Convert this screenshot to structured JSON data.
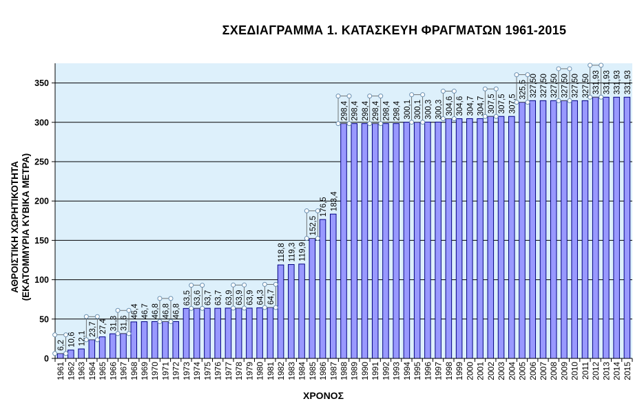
{
  "chart_data": {
    "type": "bar",
    "title": "ΣΧΕΔΙΑΓΡΑΜΜΑ 1. ΚΑΤΑΣΚΕΥΗ ΦΡΑΓΜΑΤΩΝ 1961-2015",
    "xlabel": "ΧΡΟΝΟΣ",
    "ylabel_line1": "ΑΘΡΟΙΣΤΙΚΗ ΧΩΡΗΤΙΚΟΤΗΤΑ",
    "ylabel_line2": "(ΕΚΑΤΟΜΜΥΡΙΑ ΚΥΒΙΚΑ ΜΕΤΡΑ)",
    "ylim": [
      0,
      375
    ],
    "yticks": [
      0,
      50,
      100,
      150,
      200,
      250,
      300,
      350
    ],
    "grid": true,
    "plot_background": "#DDF0FB",
    "bar_color": "#9999FF",
    "bar_stroke": "#000080",
    "categories": [
      "1961",
      "1962",
      "1963",
      "1964",
      "1965",
      "1966",
      "1967",
      "1968",
      "1969",
      "1970",
      "1971",
      "1972",
      "1973",
      "1974",
      "1975",
      "1976",
      "1977",
      "1978",
      "1979",
      "1980",
      "1981",
      "1982",
      "1983",
      "1984",
      "1985",
      "1986",
      "1987",
      "1988",
      "1989",
      "1990",
      "1991",
      "1992",
      "1993",
      "1994",
      "1995",
      "1996",
      "1997",
      "1998",
      "1999",
      "2000",
      "2001",
      "2002",
      "2003",
      "2004",
      "2005",
      "2006",
      "2007",
      "2008",
      "2009",
      "2010",
      "2011",
      "2012",
      "2013",
      "2014",
      "2015"
    ],
    "values": [
      6.2,
      10.6,
      12.1,
      23.7,
      27.4,
      31.3,
      31.6,
      46.4,
      46.7,
      46.8,
      46.8,
      46.8,
      63.5,
      63.6,
      63.7,
      63.7,
      63.9,
      63.9,
      63.9,
      64.3,
      64.7,
      118.8,
      119.3,
      119.9,
      152.5,
      176.5,
      183.4,
      298.4,
      298.4,
      298.4,
      298.4,
      298.4,
      298.4,
      300.1,
      300.1,
      300.3,
      300.3,
      304.6,
      304.6,
      304.7,
      304.7,
      307.5,
      307.5,
      307.5,
      325.5,
      327.5,
      327.5,
      327.5,
      327.5,
      327.5,
      327.5,
      331.93,
      331.93,
      331.93,
      331.93
    ],
    "data_labels": [
      "6,2",
      "10,6",
      "12,1",
      "23,7",
      "27,4",
      "31,3",
      "31,6",
      "46,4",
      "46,7",
      "46,8",
      "46,8",
      "46,8",
      "63,5",
      "63,6",
      "63,7",
      "63,7",
      "63,9",
      "63,9",
      "63,9",
      "64,3",
      "64,7",
      "118,8",
      "119,3",
      "119,9",
      "152,5",
      "176,5",
      "183,4",
      "298,4",
      "298,4",
      "298,4",
      "298,4",
      "298,4",
      "298,4",
      "300,1",
      "300,1",
      "300,3",
      "300,3",
      "304,6",
      "304,6",
      "304,7",
      "304,7",
      "307,5",
      "307,5",
      "307,5",
      "325,5",
      "327,50",
      "327,50",
      "327,50",
      "327,50",
      "327,50",
      "327,50",
      "331,93",
      "331,93",
      "331,93",
      "331,93"
    ],
    "selected_labels": [
      0,
      3,
      6,
      10,
      13,
      17,
      20,
      24,
      27,
      30,
      34,
      37,
      41,
      44,
      48,
      51
    ]
  }
}
